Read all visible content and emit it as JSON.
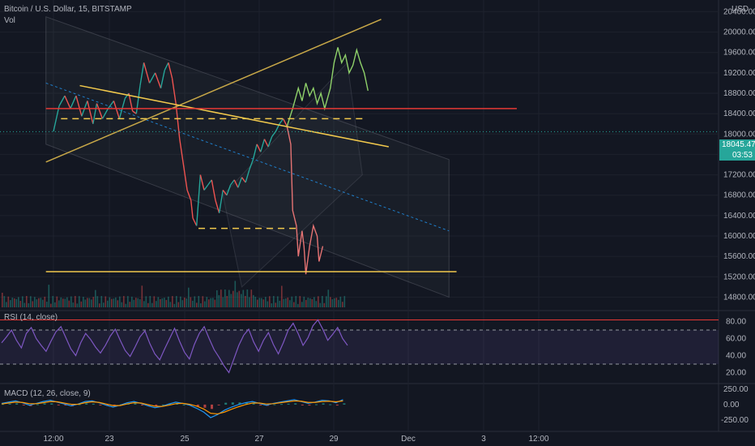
{
  "header": {
    "symbol": "Bitcoin / U.S. Dollar, 15, BITSTAMP",
    "volume_label": "Vol",
    "currency": "USD"
  },
  "rsi_legend": "RSI (14, close)",
  "macd_legend": "MACD (12, 26, close, 9)",
  "price_tag": "18045.47",
  "countdown_tag": "03:53",
  "colors": {
    "background": "#131722",
    "up": "#26a69a",
    "down": "#ef5350",
    "price_tag_bg": "#26a69a",
    "countdown_bg": "#26a69a",
    "rsi_line": "#7e57c2",
    "macd_line": "#2196f3",
    "signal_line": "#ff9800",
    "projection": "#8fd16a",
    "projection_down": "#e57373"
  },
  "chart_data": [
    {
      "type": "line",
      "title": "Bitcoin / U.S. Dollar, 15, BITSTAMP",
      "x_ticks": [
        "12:00",
        "23",
        "25",
        "27",
        "29",
        "Dec",
        "3",
        "12:00"
      ],
      "y_ticks": [
        14800,
        15200,
        15600,
        16000,
        16400,
        16800,
        17200,
        17600,
        18000,
        18400,
        18800,
        19200,
        19600,
        20000,
        20400
      ],
      "ylim": [
        14600,
        20550
      ],
      "current_price": 18045.47,
      "price_path": [
        {
          "x": 0,
          "y": 18050
        },
        {
          "x": 0.15,
          "y": 18550
        },
        {
          "x": 0.3,
          "y": 18750
        },
        {
          "x": 0.45,
          "y": 18500
        },
        {
          "x": 0.6,
          "y": 18750
        },
        {
          "x": 0.75,
          "y": 18350
        },
        {
          "x": 0.9,
          "y": 18650
        },
        {
          "x": 1.05,
          "y": 18200
        },
        {
          "x": 1.15,
          "y": 18600
        },
        {
          "x": 1.3,
          "y": 18300
        },
        {
          "x": 1.45,
          "y": 18500
        },
        {
          "x": 1.6,
          "y": 18650
        },
        {
          "x": 1.75,
          "y": 18300
        },
        {
          "x": 1.9,
          "y": 18700
        },
        {
          "x": 2.0,
          "y": 18800
        },
        {
          "x": 2.1,
          "y": 18450
        },
        {
          "x": 2.2,
          "y": 18400
        },
        {
          "x": 2.3,
          "y": 18950
        },
        {
          "x": 2.4,
          "y": 19400
        },
        {
          "x": 2.55,
          "y": 19000
        },
        {
          "x": 2.7,
          "y": 19200
        },
        {
          "x": 2.85,
          "y": 18900
        },
        {
          "x": 2.95,
          "y": 19250
        },
        {
          "x": 3.05,
          "y": 19400
        },
        {
          "x": 3.15,
          "y": 19100
        },
        {
          "x": 3.25,
          "y": 18600
        },
        {
          "x": 3.35,
          "y": 17900
        },
        {
          "x": 3.45,
          "y": 17400
        },
        {
          "x": 3.55,
          "y": 16900
        },
        {
          "x": 3.65,
          "y": 16700
        },
        {
          "x": 3.7,
          "y": 16350
        },
        {
          "x": 3.8,
          "y": 16200
        },
        {
          "x": 3.9,
          "y": 17200
        },
        {
          "x": 4.0,
          "y": 16900
        },
        {
          "x": 4.1,
          "y": 17000
        },
        {
          "x": 4.2,
          "y": 17100
        },
        {
          "x": 4.3,
          "y": 16700
        },
        {
          "x": 4.4,
          "y": 16450
        },
        {
          "x": 4.5,
          "y": 16900
        },
        {
          "x": 4.6,
          "y": 16800
        },
        {
          "x": 4.7,
          "y": 17000
        },
        {
          "x": 4.8,
          "y": 17100
        },
        {
          "x": 4.9,
          "y": 16950
        },
        {
          "x": 5.0,
          "y": 17150
        },
        {
          "x": 5.1,
          "y": 17050
        },
        {
          "x": 5.2,
          "y": 17300
        },
        {
          "x": 5.3,
          "y": 17500
        },
        {
          "x": 5.4,
          "y": 17800
        },
        {
          "x": 5.5,
          "y": 17650
        },
        {
          "x": 5.6,
          "y": 17900
        },
        {
          "x": 5.7,
          "y": 17750
        },
        {
          "x": 5.8,
          "y": 17950
        },
        {
          "x": 5.9,
          "y": 18050
        },
        {
          "x": 6.0,
          "y": 18200
        },
        {
          "x": 6.1,
          "y": 18300
        },
        {
          "x": 6.2,
          "y": 18150
        }
      ],
      "projection_up": [
        {
          "x": 6.2,
          "y": 18150
        },
        {
          "x": 6.35,
          "y": 18500
        },
        {
          "x": 6.5,
          "y": 18900
        },
        {
          "x": 6.6,
          "y": 18650
        },
        {
          "x": 6.7,
          "y": 19000
        },
        {
          "x": 6.8,
          "y": 18750
        },
        {
          "x": 6.9,
          "y": 18900
        },
        {
          "x": 7.0,
          "y": 18600
        },
        {
          "x": 7.1,
          "y": 18800
        },
        {
          "x": 7.2,
          "y": 18500
        },
        {
          "x": 7.35,
          "y": 18900
        },
        {
          "x": 7.45,
          "y": 19400
        },
        {
          "x": 7.55,
          "y": 19700
        },
        {
          "x": 7.65,
          "y": 19400
        },
        {
          "x": 7.75,
          "y": 19550
        },
        {
          "x": 7.85,
          "y": 19200
        },
        {
          "x": 7.95,
          "y": 19350
        },
        {
          "x": 8.05,
          "y": 19650
        },
        {
          "x": 8.15,
          "y": 19400
        },
        {
          "x": 8.25,
          "y": 19200
        },
        {
          "x": 8.35,
          "y": 18850
        }
      ],
      "projection_down": [
        {
          "x": 6.2,
          "y": 18150
        },
        {
          "x": 6.3,
          "y": 17800
        },
        {
          "x": 6.35,
          "y": 16500
        },
        {
          "x": 6.45,
          "y": 16200
        },
        {
          "x": 6.5,
          "y": 15600
        },
        {
          "x": 6.6,
          "y": 16100
        },
        {
          "x": 6.65,
          "y": 15800
        },
        {
          "x": 6.7,
          "y": 15250
        },
        {
          "x": 6.8,
          "y": 15800
        },
        {
          "x": 6.9,
          "y": 16200
        },
        {
          "x": 7.0,
          "y": 16000
        },
        {
          "x": 7.05,
          "y": 15500
        },
        {
          "x": 7.15,
          "y": 15800
        }
      ],
      "overlays": {
        "trend_lines": [
          {
            "from": {
              "x": -0.2,
              "y": 17450
            },
            "to": {
              "x": 8.7,
              "y": 20250
            },
            "color": "#c8a848"
          },
          {
            "from": {
              "x": 0.7,
              "y": 18950
            },
            "to": {
              "x": 8.9,
              "y": 17750
            },
            "color": "#f2c94c"
          }
        ],
        "horizontal_lines": [
          {
            "y": 18500,
            "color": "#e53935",
            "style": "solid",
            "from_x": -0.2,
            "to_x": 12.3
          },
          {
            "y": 18300,
            "color": "#f2c94c",
            "style": "dashed",
            "from_x": 0.2,
            "to_x": 8.3
          },
          {
            "y": 16150,
            "color": "#f2c94c",
            "style": "dashed",
            "from_x": 3.85,
            "to_x": 6.5
          },
          {
            "y": 15300,
            "color": "#f2c94c",
            "style": "solid",
            "from_x": -0.2,
            "to_x": 10.7
          }
        ]
      }
    },
    {
      "type": "line",
      "title": "RSI (14, close)",
      "y_ticks": [
        20,
        40,
        60,
        80
      ],
      "ylim": [
        10,
        90
      ],
      "levels": [
        30,
        70
      ],
      "values": [
        55,
        62,
        70,
        58,
        49,
        66,
        73,
        60,
        52,
        45,
        57,
        68,
        74,
        61,
        48,
        40,
        55,
        66,
        59,
        50,
        43,
        52,
        63,
        71,
        58,
        46,
        39,
        50,
        62,
        69,
        54,
        42,
        35,
        48,
        60,
        72,
        57,
        44,
        36,
        53,
        66,
        74,
        60,
        47,
        38,
        28,
        20,
        36,
        52,
        64,
        71,
        56,
        45,
        58,
        67,
        53,
        42,
        55,
        70,
        78,
        66,
        52,
        61,
        75,
        82,
        71,
        58,
        65,
        73,
        60,
        52
      ]
    },
    {
      "type": "line",
      "title": "MACD (12, 26, close, 9)",
      "y_ticks": [
        250,
        0,
        -250
      ],
      "ylim": [
        -380,
        300
      ],
      "macd": [
        20,
        40,
        60,
        30,
        -10,
        20,
        50,
        70,
        40,
        10,
        -20,
        10,
        50,
        60,
        30,
        -10,
        -40,
        -10,
        30,
        50,
        20,
        -20,
        -50,
        -30,
        10,
        40,
        20,
        -10,
        -60,
        -120,
        -210,
        -160,
        -90,
        -40,
        0,
        30,
        50,
        20,
        -10,
        20,
        40,
        60,
        80,
        50,
        20,
        40,
        70,
        60,
        30,
        80
      ],
      "signal": [
        10,
        25,
        40,
        35,
        15,
        15,
        30,
        50,
        45,
        25,
        5,
        5,
        30,
        45,
        35,
        10,
        -15,
        -15,
        10,
        30,
        25,
        0,
        -25,
        -30,
        -10,
        15,
        20,
        5,
        -25,
        -70,
        -140,
        -150,
        -120,
        -75,
        -35,
        0,
        25,
        25,
        10,
        15,
        30,
        45,
        60,
        55,
        35,
        35,
        50,
        55,
        45,
        60
      ]
    }
  ]
}
